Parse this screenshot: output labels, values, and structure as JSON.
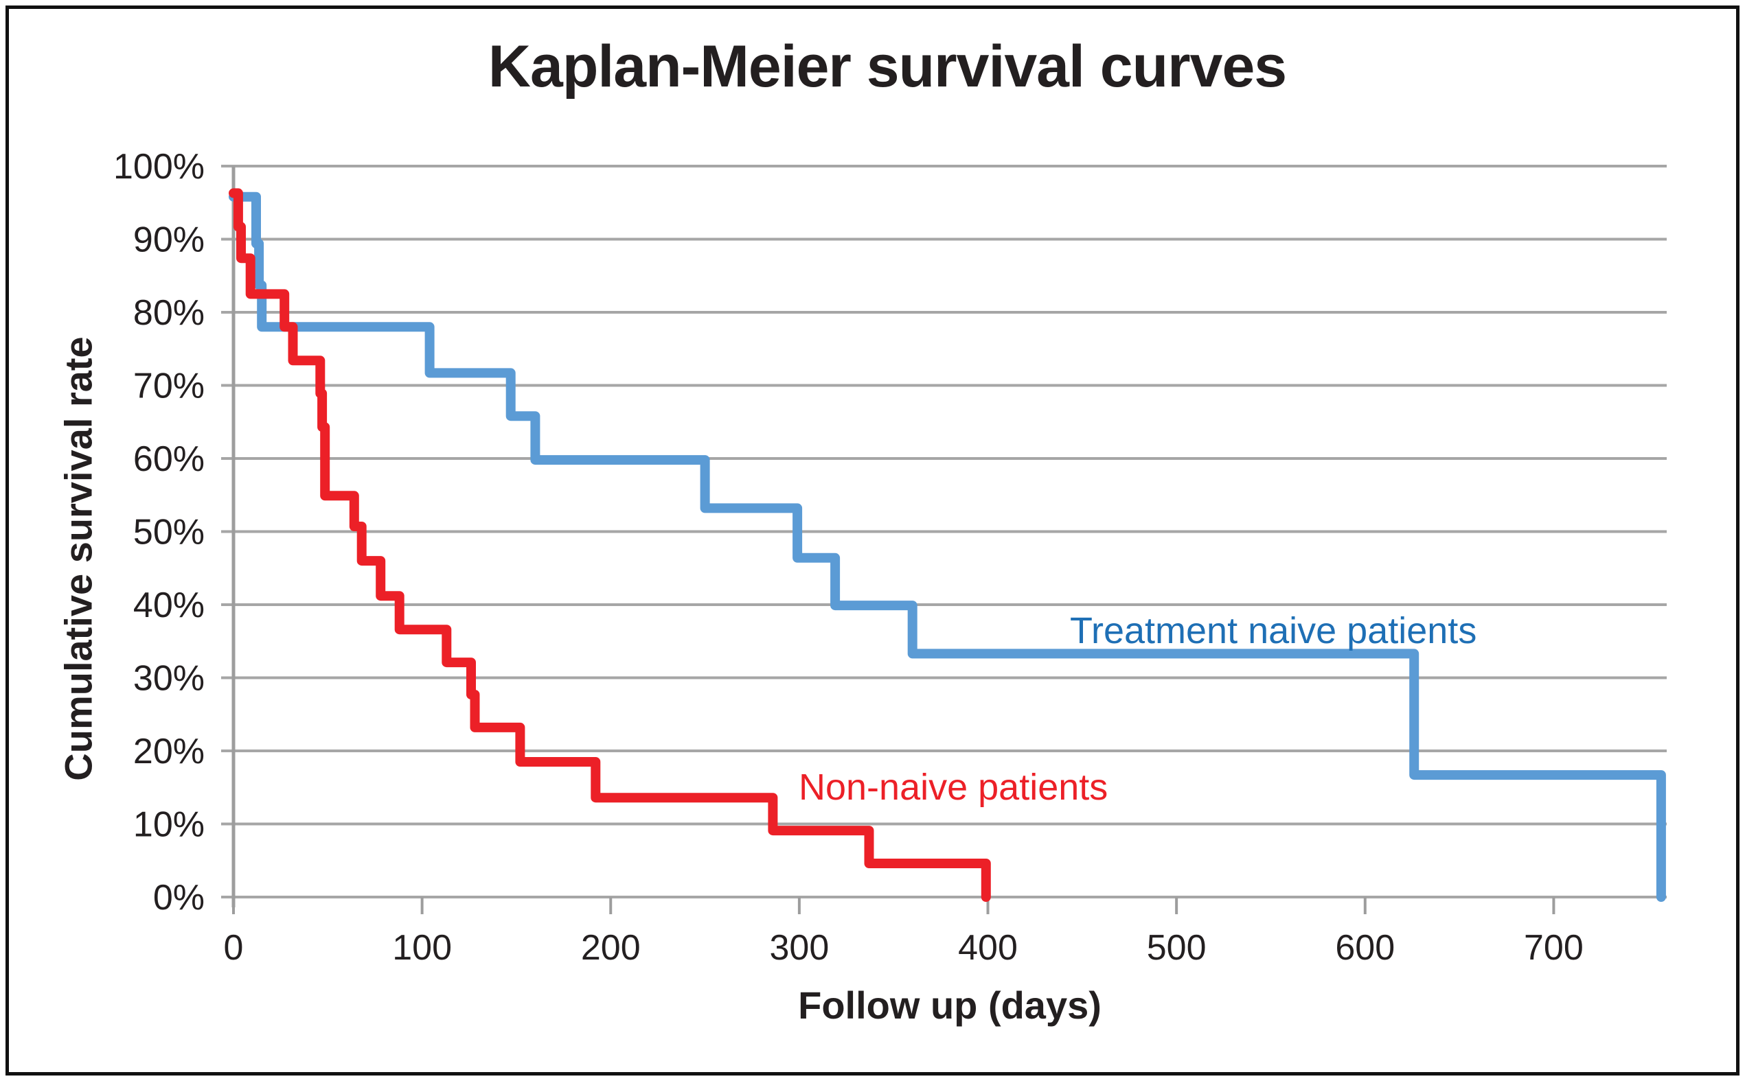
{
  "chart_data": {
    "type": "line",
    "subtype": "kaplan-meier-step",
    "title": "Kaplan-Meier survival curves",
    "xlabel": "Follow up (days)",
    "ylabel": "Cumulative survival rate",
    "xlim": [
      0,
      760
    ],
    "ylim": [
      0,
      100
    ],
    "grid": "horizontal-only",
    "legend_position": "inline-annotations",
    "x_tick_values": [
      0,
      100,
      200,
      300,
      400,
      500,
      600,
      700
    ],
    "x_tick_labels": [
      "0",
      "100",
      "200",
      "300",
      "400",
      "500",
      "600",
      "700"
    ],
    "y_tick_values": [
      100,
      90,
      80,
      70,
      60,
      50,
      40,
      30,
      20,
      10,
      0
    ],
    "y_tick_labels": [
      "100%",
      "90%",
      "80%",
      "70%",
      "60%",
      "50%",
      "40%",
      "30%",
      "20%",
      "10%",
      "0%"
    ],
    "colors": {
      "grid": "#a6a6a6",
      "axis": "#9d9d9d",
      "text": "#231f20",
      "border": "#111111",
      "background": "#ffffff"
    },
    "series": [
      {
        "name": "Treatment naive patients",
        "color": "#5b9bd5",
        "label_color": "#1e6fb5",
        "points_day_percent": [
          [
            0,
            95.8
          ],
          [
            12,
            89.4
          ],
          [
            13.5,
            83.7
          ],
          [
            15,
            78.0
          ],
          [
            104,
            71.7
          ],
          [
            147,
            65.8
          ],
          [
            160,
            59.8
          ],
          [
            250,
            53.2
          ],
          [
            299,
            46.4
          ],
          [
            319,
            39.9
          ],
          [
            360,
            33.3
          ],
          [
            626,
            16.7
          ],
          [
            757,
            0
          ]
        ]
      },
      {
        "name": "Non-naive patients",
        "color": "#ec2027",
        "label_color": "#ec2027",
        "points_day_percent": [
          [
            0,
            96.3
          ],
          [
            2.5,
            91.7
          ],
          [
            4,
            87.4
          ],
          [
            9,
            82.5
          ],
          [
            27,
            78.0
          ],
          [
            31.5,
            73.4
          ],
          [
            46,
            68.9
          ],
          [
            47,
            64.3
          ],
          [
            48.5,
            54.9
          ],
          [
            64,
            50.7
          ],
          [
            68,
            46.0
          ],
          [
            78,
            41.2
          ],
          [
            88,
            36.6
          ],
          [
            113,
            32.1
          ],
          [
            126,
            27.7
          ],
          [
            128,
            23.2
          ],
          [
            152,
            18.5
          ],
          [
            192,
            13.6
          ],
          [
            286,
            9.1
          ],
          [
            337,
            4.6
          ],
          [
            399,
            0
          ]
        ]
      }
    ]
  }
}
